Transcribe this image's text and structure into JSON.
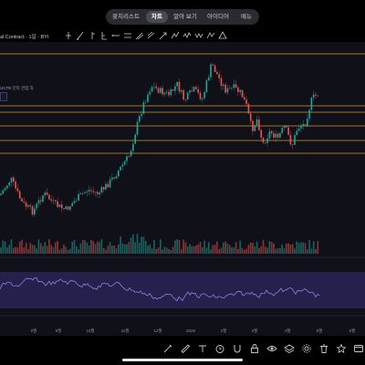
{
  "tabs": [
    {
      "label": "왓치리스트",
      "active": false
    },
    {
      "label": "차트",
      "active": true
    },
    {
      "label": "알아 보기",
      "active": false
    },
    {
      "label": "아이디어",
      "active": false
    },
    {
      "label": "메뉴",
      "active": false
    }
  ],
  "chart": {
    "symbol_label": "al Contract · 1일 · BYI",
    "info_label": "UCTB 단타 관점 직",
    "x_ticks": [
      "8월",
      "9월",
      "10월",
      "11월",
      "12월",
      "2025",
      "2월",
      "3월",
      "4월",
      "5월",
      "6월"
    ]
  },
  "drawing_tools": [
    "cursor-tool-icon",
    "trend-line-icon",
    "horizontal-line-icon",
    "fib-retracement-icon",
    "ray-icon",
    "channel-icon",
    "pitchfork-icon",
    "brush-icon",
    "arrow-icon",
    "path-icon",
    "wave-icon",
    "zigzag-icon",
    "pattern-icon",
    "triangle-icon"
  ],
  "bottom_tools": [
    "brush-icon",
    "ruler-icon",
    "text-icon",
    "timer-icon",
    "magnet-icon",
    "lock-icon",
    "eye-icon",
    "layers-icon",
    "gear-icon",
    "trash-icon",
    "star-icon",
    "fullscreen-icon"
  ],
  "colors": {
    "up": "#26a69a",
    "down": "#ef5350",
    "level_line": "#d4943a",
    "rsi_line": "#9c8cf0",
    "rsi_band": "#2a2456",
    "background": "#0f1018"
  }
}
